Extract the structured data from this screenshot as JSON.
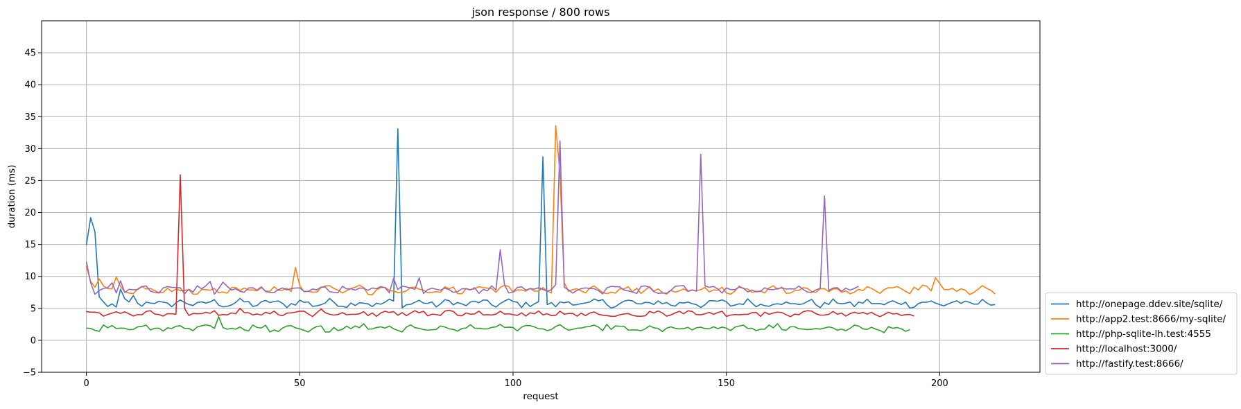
{
  "chart_data": {
    "type": "line",
    "title": "json response / 800 rows",
    "xlabel": "request",
    "ylabel": "duration (ms)",
    "xlim": [
      -10.5,
      223.5
    ],
    "ylim": [
      -5,
      50
    ],
    "xticks": [
      0,
      50,
      100,
      150,
      200
    ],
    "yticks": [
      -5,
      0,
      5,
      10,
      15,
      20,
      25,
      30,
      35,
      40,
      45
    ],
    "grid": true,
    "legend_position": "outside-right-bottom",
    "series": [
      {
        "name": "http://onepage.ddev.site/sqlite/",
        "color": "#1f77b4",
        "length": 214,
        "base": 5.8,
        "amp": 0.5,
        "phase": 0.3,
        "keys": [
          [
            0,
            14.9
          ],
          [
            1,
            19.2
          ],
          [
            2,
            17.0
          ],
          [
            3,
            6.8
          ],
          [
            4,
            6.0
          ],
          [
            5,
            5.3
          ],
          [
            6,
            5.7
          ],
          [
            7,
            5.2
          ],
          [
            8,
            8.0
          ],
          [
            9,
            6.5
          ],
          [
            10,
            6.0
          ],
          [
            11,
            7.0
          ],
          [
            73,
            33.1
          ],
          [
            107,
            28.7
          ]
        ]
      },
      {
        "name": "http://app2.test:8666/my-sqlite/",
        "color": "#ff7f0e",
        "length": 214,
        "base": 7.9,
        "amp": 0.5,
        "phase": 1.1,
        "keys": [
          [
            0,
            11.6
          ],
          [
            1,
            9.2
          ],
          [
            2,
            8.3
          ],
          [
            3,
            9.6
          ],
          [
            4,
            8.5
          ],
          [
            7,
            9.9
          ],
          [
            49,
            11.4
          ],
          [
            110,
            33.6
          ],
          [
            111,
            26.0
          ],
          [
            112,
            9.0
          ],
          [
            199,
            9.8
          ],
          [
            200,
            8.9
          ]
        ]
      },
      {
        "name": "http://php-sqlite-lh.test:4555",
        "color": "#2ca02c",
        "length": 194,
        "base": 1.9,
        "amp": 0.35,
        "phase": 2.0,
        "keys": [
          [
            0,
            1.9
          ],
          [
            3,
            1.4
          ],
          [
            4,
            2.4
          ],
          [
            31,
            3.7
          ],
          [
            32,
            2.0
          ],
          [
            39,
            2.4
          ],
          [
            43,
            1.3
          ],
          [
            52,
            1.3
          ],
          [
            56,
            1.3
          ],
          [
            57,
            1.3
          ],
          [
            65,
            2.6
          ],
          [
            74,
            1.3
          ],
          [
            97,
            2.5
          ],
          [
            122,
            2.5
          ],
          [
            162,
            2.6
          ],
          [
            187,
            1.2
          ]
        ]
      },
      {
        "name": "http://localhost:3000/",
        "color": "#d62728",
        "length": 195,
        "base": 4.2,
        "amp": 0.35,
        "phase": 0.8,
        "keys": [
          [
            0,
            4.5
          ],
          [
            1,
            4.4
          ],
          [
            2,
            4.4
          ],
          [
            3,
            4.3
          ],
          [
            22,
            25.9
          ],
          [
            23,
            5.0
          ],
          [
            36,
            5.0
          ],
          [
            55,
            4.9
          ],
          [
            56,
            4.3
          ],
          [
            72,
            4.5
          ],
          [
            188,
            4.4
          ]
        ]
      },
      {
        "name": "http://fastify.test:8666/",
        "color": "#9467bd",
        "length": 182,
        "base": 8.0,
        "amp": 0.5,
        "phase": 2.6,
        "keys": [
          [
            0,
            12.3
          ],
          [
            1,
            9.0
          ],
          [
            2,
            7.2
          ],
          [
            3,
            7.8
          ],
          [
            6,
            9.0
          ],
          [
            7,
            7.4
          ],
          [
            8,
            9.3
          ],
          [
            29,
            9.2
          ],
          [
            32,
            9.1
          ],
          [
            72,
            9.7
          ],
          [
            78,
            9.8
          ],
          [
            97,
            14.2
          ],
          [
            98,
            8.7
          ],
          [
            111,
            31.2
          ],
          [
            112,
            8.3
          ],
          [
            144,
            29.1
          ],
          [
            145,
            8.5
          ],
          [
            173,
            22.6
          ],
          [
            174,
            7.8
          ]
        ]
      }
    ]
  }
}
